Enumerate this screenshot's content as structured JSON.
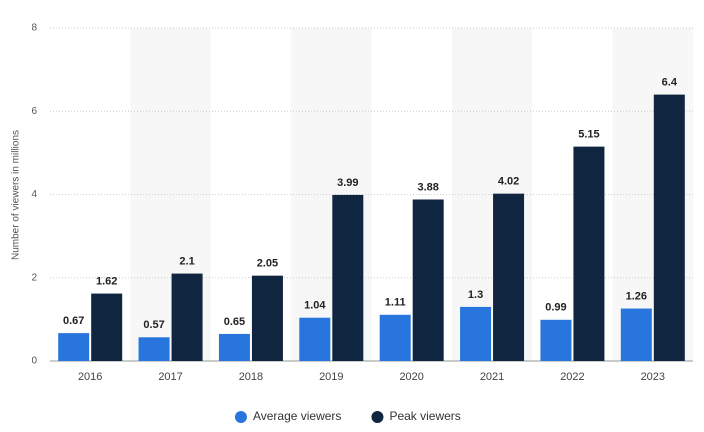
{
  "chart_data": {
    "type": "bar",
    "y_label": "Number of viewers in millions",
    "categories": [
      "2016",
      "2017",
      "2018",
      "2019",
      "2020",
      "2021",
      "2022",
      "2023"
    ],
    "series": [
      {
        "name": "Average viewers",
        "color": "#2876dd",
        "values": [
          0.67,
          0.57,
          0.65,
          1.04,
          1.11,
          1.3,
          0.99,
          1.26
        ]
      },
      {
        "name": "Peak viewers",
        "color": "#0f2540",
        "values": [
          1.62,
          2.1,
          2.05,
          3.99,
          3.88,
          4.02,
          5.15,
          6.4
        ]
      }
    ],
    "ylim": [
      0,
      8
    ],
    "yticks": [
      0,
      2,
      4,
      6,
      8
    ],
    "grid": true,
    "legend": "bottom"
  }
}
